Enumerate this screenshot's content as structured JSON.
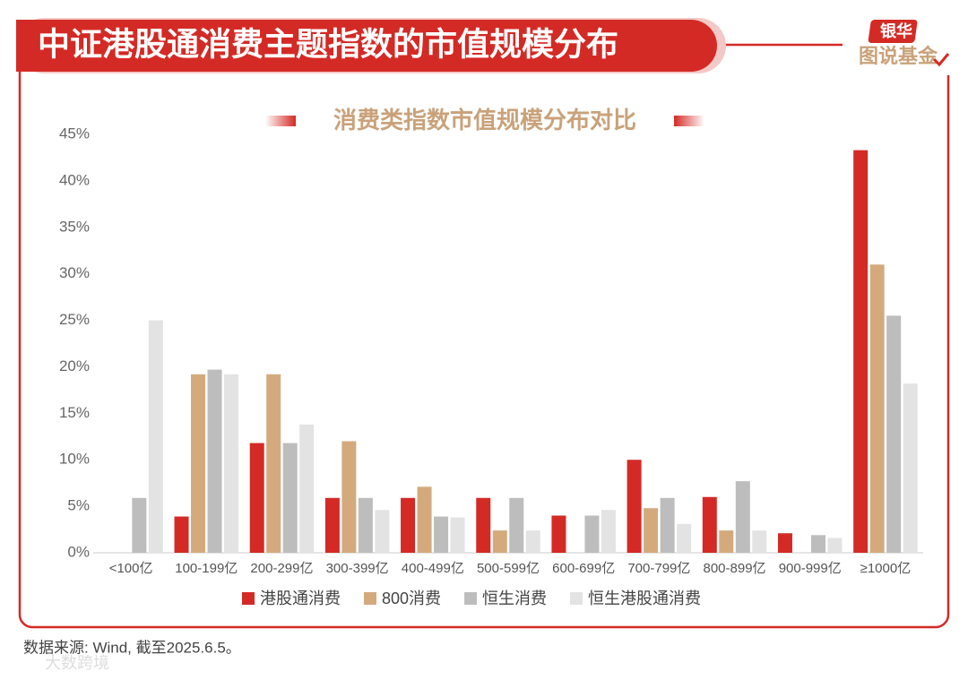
{
  "chart_data": {
    "type": "bar",
    "title": "中证港股通消费主题指数的市值规模分布",
    "subtitle": "消费类指数市值规模分布对比",
    "source": "数据来源: Wind, 截至2025.6.5。",
    "categories": [
      "<100亿",
      "100-199亿",
      "200-299亿",
      "300-399亿",
      "400-499亿",
      "500-599亿",
      "600-699亿",
      "700-799亿",
      "800-899亿",
      "900-999亿",
      "≥1000亿"
    ],
    "series": [
      {
        "name": "港股通消费",
        "color": "#d42a25",
        "values": [
          0,
          3.9,
          11.8,
          5.9,
          5.9,
          5.9,
          4.0,
          10.0,
          6.0,
          2.1,
          43.3
        ]
      },
      {
        "name": "800消费",
        "color": "#d4aa7d",
        "values": [
          0,
          19.2,
          19.2,
          12.0,
          7.1,
          2.4,
          0,
          4.8,
          2.4,
          0,
          31.0
        ]
      },
      {
        "name": "恒生消费",
        "color": "#bdbdbd",
        "values": [
          5.9,
          19.7,
          11.8,
          5.9,
          3.9,
          5.9,
          4.0,
          5.9,
          7.7,
          1.9,
          25.5
        ]
      },
      {
        "name": "恒生港股通消费",
        "color": "#e3e3e3",
        "values": [
          25.0,
          19.2,
          13.8,
          4.6,
          3.8,
          2.4,
          4.6,
          3.1,
          2.4,
          1.6,
          18.2
        ]
      }
    ],
    "ylim": [
      0,
      45
    ],
    "yticks": [
      {
        "value": 0,
        "label": "0%"
      },
      {
        "value": 5,
        "label": "5%"
      },
      {
        "value": 10,
        "label": "10%"
      },
      {
        "value": 15,
        "label": "15%"
      },
      {
        "value": 20,
        "label": "20%"
      },
      {
        "value": 25,
        "label": "25%"
      },
      {
        "value": 30,
        "label": "30%"
      },
      {
        "value": 35,
        "label": "35%"
      },
      {
        "value": 40,
        "label": "40%"
      },
      {
        "value": 45,
        "label": "45%"
      }
    ],
    "grid": false
  },
  "logo": {
    "brand": "银华",
    "slogan": "图说基金"
  },
  "watermark": "大数跨境"
}
